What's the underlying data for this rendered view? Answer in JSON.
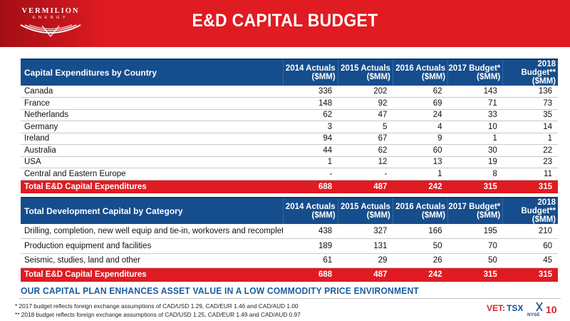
{
  "header": {
    "logo_name": "VERMILION",
    "logo_sub": "ENERGY",
    "title": "E&D CAPITAL BUDGET",
    "colors": {
      "brand_red": "#e01b22",
      "header_blue": "#164d8c",
      "tagline_blue": "#1a5b9f"
    }
  },
  "country_table": {
    "header": "Capital Expenditures by Country",
    "columns": [
      [
        "2014 Actuals",
        "($MM)"
      ],
      [
        "2015 Actuals",
        "($MM)"
      ],
      [
        "2016 Actuals",
        "($MM)"
      ],
      [
        "2017 Budget*",
        "($MM)"
      ],
      [
        "2018 Budget**",
        "($MM)"
      ]
    ],
    "rows": [
      {
        "name": "Canada",
        "values": [
          "336",
          "202",
          "62",
          "143",
          "136"
        ]
      },
      {
        "name": "France",
        "values": [
          "148",
          "92",
          "69",
          "71",
          "73"
        ]
      },
      {
        "name": "Netherlands",
        "values": [
          "62",
          "47",
          "24",
          "33",
          "35"
        ]
      },
      {
        "name": "Germany",
        "values": [
          "3",
          "5",
          "4",
          "10",
          "14"
        ]
      },
      {
        "name": "Ireland",
        "values": [
          "94",
          "67",
          "9",
          "1",
          "1"
        ]
      },
      {
        "name": "Australia",
        "values": [
          "44",
          "62",
          "60",
          "30",
          "22"
        ]
      },
      {
        "name": "USA",
        "values": [
          "1",
          "12",
          "13",
          "19",
          "23"
        ]
      },
      {
        "name": "Central and Eastern Europe",
        "values": [
          "-",
          "-",
          "1",
          "8",
          "11"
        ]
      }
    ],
    "total": {
      "name": "Total E&D Capital Expenditures",
      "values": [
        "688",
        "487",
        "242",
        "315",
        "315"
      ]
    }
  },
  "category_table": {
    "header": "Total Development Capital by Category",
    "columns": [
      [
        "2014 Actuals",
        "($MM)"
      ],
      [
        "2015 Actuals",
        "($MM)"
      ],
      [
        "2016 Actuals",
        "($MM)"
      ],
      [
        "2017 Budget*",
        "($MM)"
      ],
      [
        "2018 Budget**",
        "($MM)"
      ]
    ],
    "rows": [
      {
        "name": "Drilling, completion, new well equip and tie-in, workovers and recompletions",
        "values": [
          "438",
          "327",
          "166",
          "195",
          "210"
        ]
      },
      {
        "name": "Production equipment and facilities",
        "values": [
          "189",
          "131",
          "50",
          "70",
          "60"
        ]
      },
      {
        "name": "Seismic, studies, land and other",
        "values": [
          "61",
          "29",
          "26",
          "50",
          "45"
        ]
      }
    ],
    "total": {
      "name": "Total E&D Capital Expenditures",
      "values": [
        "688",
        "487",
        "242",
        "315",
        "315"
      ]
    }
  },
  "footer": {
    "tagline": "OUR CAPITAL PLAN ENHANCES ASSET VALUE IN A LOW COMMODITY PRICE ENVIRONMENT",
    "footnote_1": "*  2017 budget reflects foreign exchange assumptions of CAD/USD 1.29, CAD/EUR 1.46 and CAD/AUD 1.00",
    "footnote_2": "** 2018 budget reflects foreign exchange assumptions of CAD/USD 1.25, CAD/EUR 1.49 and CAD/AUD 0.97",
    "ticker_prefix": "VET:",
    "ticker_tsx": "TSX",
    "ticker_nyse": "NYSE",
    "page_number": "10"
  }
}
